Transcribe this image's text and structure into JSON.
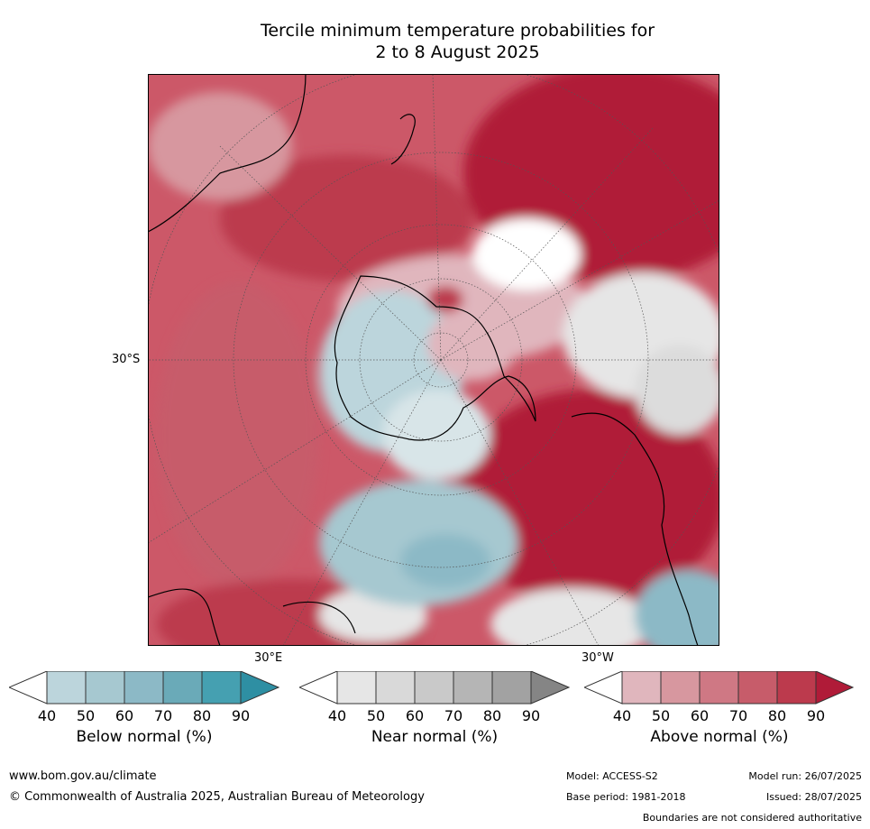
{
  "title_line1": "Tercile minimum temperature probabilities for",
  "title_line2": "2 to 8 August 2025",
  "map": {
    "lat_label": "30°S",
    "lon_labels": [
      "30°E",
      "30°W"
    ]
  },
  "colorbars": [
    {
      "label": "Below normal (%)",
      "ticks": [
        "40",
        "50",
        "60",
        "70",
        "80",
        "90"
      ],
      "colors": [
        "#ffffff",
        "#bcd5dc",
        "#a6c8d0",
        "#8cb9c6",
        "#6aaab8",
        "#45a0b1",
        "#2e8fa3"
      ]
    },
    {
      "label": "Near normal (%)",
      "ticks": [
        "40",
        "50",
        "60",
        "70",
        "80",
        "90"
      ],
      "colors": [
        "#ffffff",
        "#e6e6e6",
        "#d9d9d9",
        "#c9c9c9",
        "#b5b5b5",
        "#a2a2a2",
        "#858585"
      ]
    },
    {
      "label": "Above normal (%)",
      "ticks": [
        "40",
        "50",
        "60",
        "70",
        "80",
        "90"
      ],
      "colors": [
        "#ffffff",
        "#e0b6bd",
        "#d7979f",
        "#cf7884",
        "#c75c6a",
        "#bc3a4d",
        "#b01b38"
      ]
    }
  ],
  "footer": {
    "website": "www.bom.gov.au/climate",
    "copyright": "© Commonwealth of Australia 2025, Australian Bureau of Meteorology",
    "model": "Model: ACCESS-S2",
    "base_period": "Base period: 1981-2018",
    "model_run": "Model run: 26/07/2025",
    "issued": "Issued: 28/07/2025",
    "disclaimer": "Boundaries are not considered authoritative"
  }
}
